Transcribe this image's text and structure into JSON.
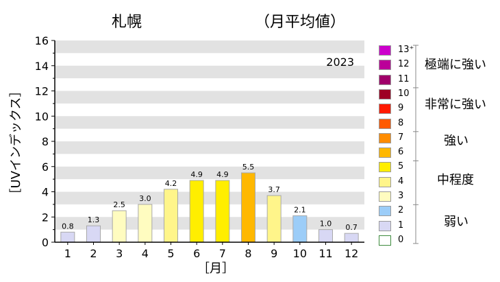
{
  "header": {
    "city": "札幌",
    "subtitle": "（月平均値）"
  },
  "chart_data": {
    "type": "bar",
    "title": "札幌",
    "subtitle": "（月平均値）",
    "year_label": "2023",
    "xlabel": "［月］",
    "ylabel": "［UVインデックス］",
    "ylim": [
      0,
      16
    ],
    "yticks": [
      0,
      2,
      4,
      6,
      8,
      10,
      12,
      14,
      16
    ],
    "categories": [
      "1",
      "2",
      "3",
      "4",
      "5",
      "6",
      "7",
      "8",
      "9",
      "10",
      "11",
      "12"
    ],
    "values": [
      0.8,
      1.3,
      2.5,
      3.0,
      4.2,
      4.9,
      4.9,
      5.5,
      3.7,
      2.1,
      1.0,
      0.7
    ],
    "value_labels": [
      "0.8",
      "1.3",
      "2.5",
      "3.0",
      "4.2",
      "4.9",
      "4.9",
      "5.5",
      "3.7",
      "2.1",
      "1.0",
      "0.7"
    ],
    "grid": "horizontal bands",
    "legend": {
      "position": "right",
      "levels": [
        {
          "label": "13⁺",
          "color": "#cc00cc"
        },
        {
          "label": "12",
          "color": "#bb0099"
        },
        {
          "label": "11",
          "color": "#a0006a"
        },
        {
          "label": "10",
          "color": "#9e0024"
        },
        {
          "label": "9",
          "color": "#ff1a00"
        },
        {
          "label": "8",
          "color": "#ff5a00"
        },
        {
          "label": "7",
          "color": "#ff8c00"
        },
        {
          "label": "6",
          "color": "#ffb800"
        },
        {
          "label": "5",
          "color": "#ffee00"
        },
        {
          "label": "4",
          "color": "#fff58a"
        },
        {
          "label": "3",
          "color": "#fffcc0"
        },
        {
          "label": "2",
          "color": "#9ccdf8"
        },
        {
          "label": "1",
          "color": "#d8d8f4"
        },
        {
          "label": "0",
          "color": "#ffffff"
        }
      ],
      "categories": [
        {
          "label": "極端に強い",
          "from": 11,
          "to": 13
        },
        {
          "label": "非常に強い",
          "from": 8,
          "to": 10
        },
        {
          "label": "強い",
          "from": 6,
          "to": 7
        },
        {
          "label": "中程度",
          "from": 3,
          "to": 5
        },
        {
          "label": "弱い",
          "from": 0,
          "to": 2
        }
      ]
    }
  }
}
